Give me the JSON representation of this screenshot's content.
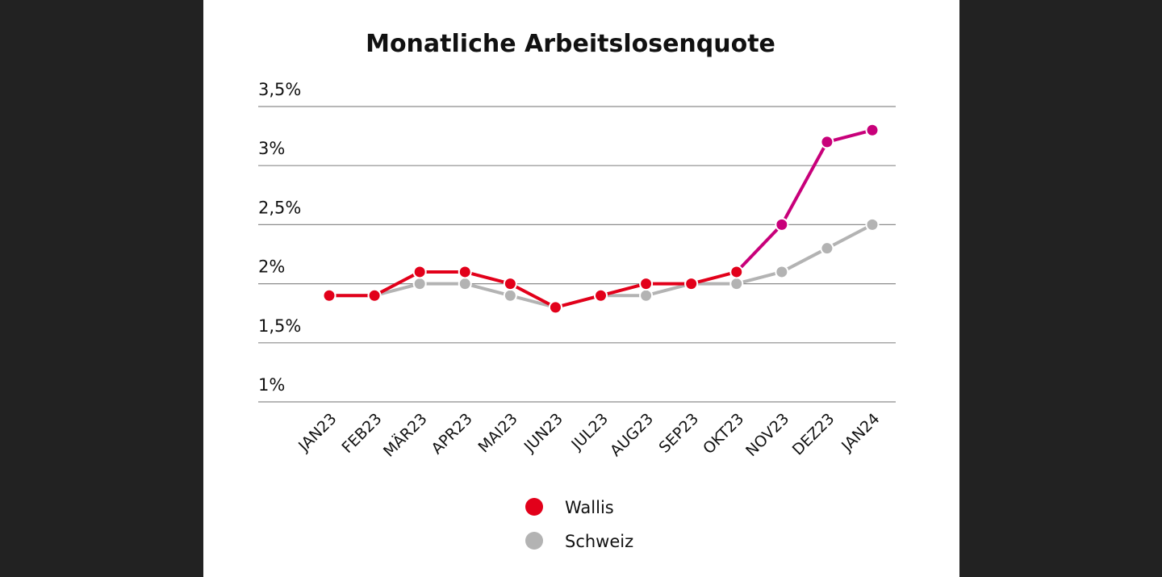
{
  "chart_data": {
    "type": "line",
    "title": "Monatliche Arbeitslosenquote",
    "xlabel": "",
    "ylabel": "",
    "categories": [
      "JAN23",
      "FEB23",
      "MÄR23",
      "APR23",
      "MAI23",
      "JUN23",
      "JUL23",
      "AUG23",
      "SEP23",
      "OKT23",
      "NOV23",
      "DEZ23",
      "JAN24"
    ],
    "y_ticks": [
      1,
      1.5,
      2,
      2.5,
      3,
      3.5
    ],
    "y_tick_labels": [
      "1%",
      "1,5%",
      "2%",
      "2,5%",
      "3%",
      "3,5%"
    ],
    "ylim": [
      1,
      3.5
    ],
    "grid": true,
    "legend_position": "bottom-center",
    "series": [
      {
        "name": "Schweiz",
        "color": "#b3b3b3",
        "values": [
          1.9,
          1.9,
          2.0,
          2.0,
          1.9,
          1.8,
          1.9,
          1.9,
          2.0,
          2.0,
          2.1,
          2.3,
          2.5
        ]
      },
      {
        "name": "Wallis",
        "color": "#e2001a",
        "color_highlight": "#c8007a",
        "highlight_from_index": 9,
        "values": [
          1.9,
          1.9,
          2.1,
          2.1,
          2.0,
          1.8,
          1.9,
          2.0,
          2.0,
          2.1,
          2.5,
          3.2,
          3.3
        ]
      }
    ]
  }
}
